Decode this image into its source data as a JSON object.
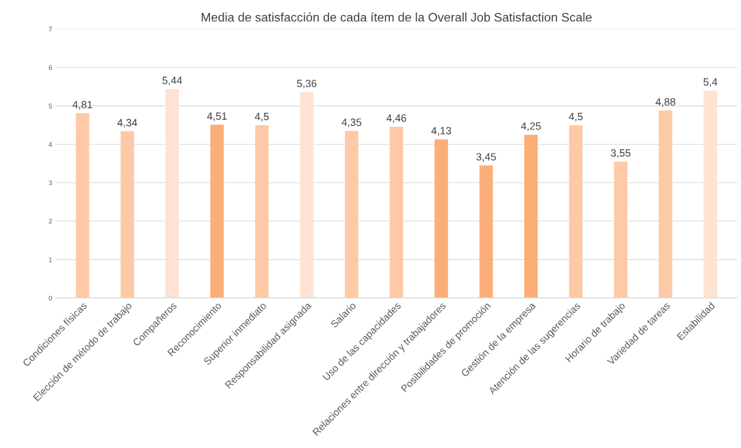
{
  "chart_data": {
    "type": "bar",
    "title": "Media de satisfacción de cada ítem de la Overall Job Satisfaction Scale",
    "categories": [
      "Condiciones físicas",
      "Elección de método de trabajo",
      "Compañeros",
      "Reconocimiento",
      "Superior inmediato",
      "Responsabilidad asignada",
      "Salario",
      "Uso de las capacidades",
      "Relaciones entre dirección y trabajadores",
      "Posibilidades de promoción",
      "Gestión de la empresa",
      "Atención de las sugerencias",
      "Horario de trabajo",
      "Variedad de tareas",
      "Estabilidad"
    ],
    "values": [
      4.81,
      4.34,
      5.44,
      4.51,
      4.5,
      5.36,
      4.35,
      4.46,
      4.13,
      3.45,
      4.25,
      4.5,
      3.55,
      4.88,
      5.4
    ],
    "value_labels": [
      "4,81",
      "4,34",
      "5,44",
      "4,51",
      "4,5",
      "5,36",
      "4,35",
      "4,46",
      "4,13",
      "3,45",
      "4,25",
      "4,5",
      "3,55",
      "4,88",
      "5,4"
    ],
    "colors": [
      "#fdc9a6",
      "#fdc9a6",
      "#fee3d2",
      "#fcae78",
      "#fdc9a6",
      "#fee3d2",
      "#fdc9a6",
      "#fdc9a6",
      "#fcae78",
      "#fcae78",
      "#fcae78",
      "#fdc9a6",
      "#fdc9a6",
      "#fdc9a6",
      "#fee3d2"
    ],
    "ylim": [
      0,
      7
    ],
    "yticks": [
      0,
      1,
      2,
      3,
      4,
      5,
      6,
      7
    ],
    "grid": "y",
    "legend": false
  }
}
